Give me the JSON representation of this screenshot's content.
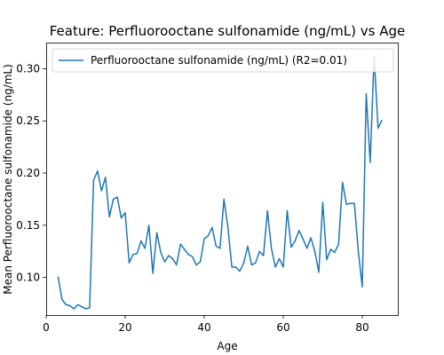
{
  "chart_data": {
    "type": "line",
    "title": "Feature: Perfluorooctane sulfonamide (ng/mL) vs Age",
    "xlabel": "Age",
    "ylabel": "Mean Perfluorooctane sulfonamide (ng/mL)",
    "xlim": [
      0,
      89
    ],
    "ylim": [
      0.064,
      0.325
    ],
    "xticks": [
      0,
      20,
      40,
      60,
      80
    ],
    "yticks": [
      0.1,
      0.15,
      0.2,
      0.25,
      0.3
    ],
    "grid": false,
    "legend_position": "top-right",
    "series": [
      {
        "name": "Perfluorooctane sulfonamide (ng/mL) (R2=0.01)",
        "color": "#1f77b4",
        "x": [
          3,
          4,
          5,
          6,
          7,
          8,
          9,
          10,
          11,
          12,
          13,
          14,
          15,
          16,
          17,
          18,
          19,
          20,
          21,
          22,
          23,
          24,
          25,
          26,
          27,
          28,
          29,
          30,
          31,
          32,
          33,
          34,
          35,
          36,
          37,
          38,
          39,
          40,
          41,
          42,
          43,
          44,
          45,
          46,
          47,
          48,
          49,
          50,
          51,
          52,
          53,
          54,
          55,
          56,
          57,
          58,
          59,
          60,
          61,
          62,
          63,
          64,
          65,
          66,
          67,
          68,
          69,
          70,
          71,
          72,
          73,
          74,
          75,
          76,
          77,
          78,
          79,
          80,
          81,
          82,
          83,
          84,
          85
        ],
        "y": [
          0.101,
          0.079,
          0.074,
          0.073,
          0.07,
          0.074,
          0.072,
          0.07,
          0.071,
          0.193,
          0.202,
          0.183,
          0.196,
          0.158,
          0.175,
          0.177,
          0.157,
          0.162,
          0.114,
          0.122,
          0.123,
          0.135,
          0.128,
          0.15,
          0.104,
          0.143,
          0.124,
          0.115,
          0.121,
          0.118,
          0.112,
          0.132,
          0.127,
          0.122,
          0.12,
          0.112,
          0.115,
          0.137,
          0.14,
          0.148,
          0.13,
          0.128,
          0.175,
          0.148,
          0.11,
          0.11,
          0.106,
          0.114,
          0.13,
          0.112,
          0.114,
          0.125,
          0.121,
          0.164,
          0.128,
          0.11,
          0.118,
          0.11,
          0.164,
          0.129,
          0.135,
          0.145,
          0.137,
          0.128,
          0.138,
          0.125,
          0.105,
          0.172,
          0.117,
          0.127,
          0.124,
          0.132,
          0.191,
          0.17,
          0.171,
          0.171,
          0.125,
          0.091,
          0.276,
          0.21,
          0.312,
          0.243,
          0.251
        ]
      }
    ]
  }
}
